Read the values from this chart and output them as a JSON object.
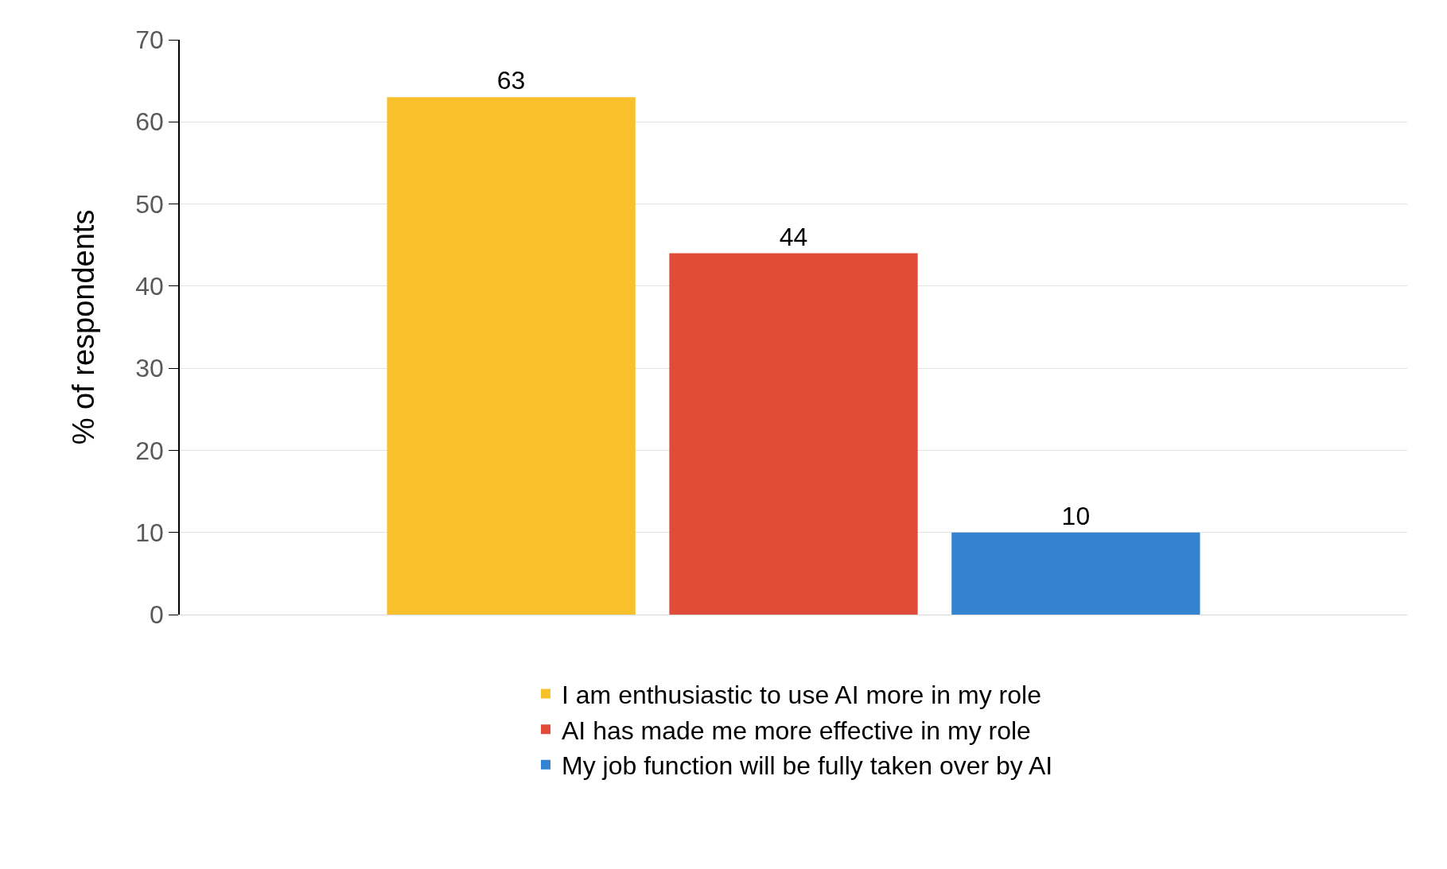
{
  "chart_data": {
    "type": "bar",
    "ylabel": "% of respondents",
    "categories": [
      null
    ],
    "series": [
      {
        "name": "I am enthusiastic to use AI more in my role",
        "color": "#f8c02a",
        "values": [
          63
        ]
      },
      {
        "name": "AI has made me more effective in my role",
        "color": "#e04c37",
        "values": [
          44
        ]
      },
      {
        "name": "My job function will be fully taken over by AI",
        "color": "#3383d1",
        "values": [
          10
        ]
      }
    ],
    "ylim": [
      0,
      70
    ],
    "yticks": [
      0,
      10,
      20,
      30,
      40,
      50,
      60,
      70
    ],
    "grid": "y",
    "data_labels": true,
    "legend": "bottom",
    "tick_labels": "y"
  }
}
